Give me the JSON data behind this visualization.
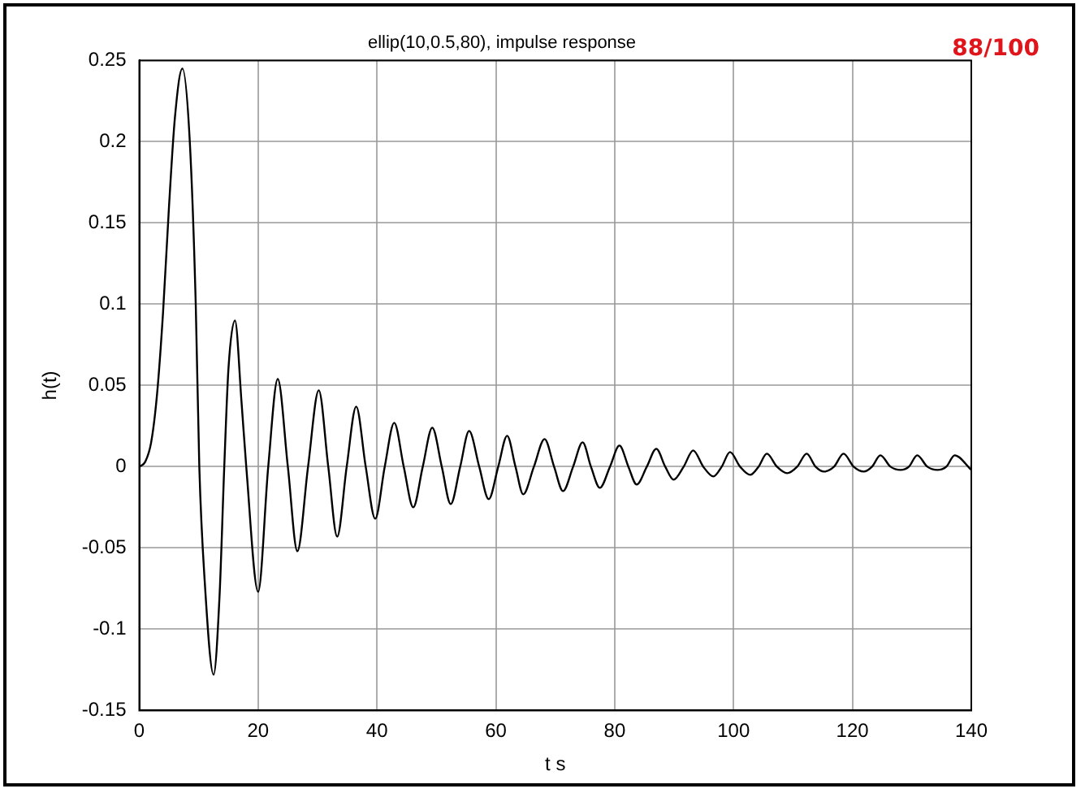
{
  "chart_data": {
    "type": "line",
    "title": "ellip(10,0.5,80), impulse response",
    "xlabel": "t s",
    "ylabel": "h(t)",
    "annotations": [
      "88/100"
    ],
    "xlim": [
      0,
      140
    ],
    "xticks": [
      0,
      20,
      40,
      60,
      80,
      100,
      120,
      140
    ],
    "ylim": [
      -0.15,
      0.25
    ],
    "yticks": [
      -0.15,
      -0.1,
      -0.05,
      0,
      0.05,
      0.1,
      0.15,
      0.2,
      0.25
    ],
    "grid": true,
    "legend": false,
    "marker": "none",
    "line_style": "solid",
    "series": [
      {
        "color": "#000000",
        "x": [
          0,
          1,
          2,
          3,
          4,
          5,
          6,
          7.25,
          8.5,
          9.5,
          10.1,
          11,
          12.5,
          13.5,
          14.3,
          15,
          16.1,
          17.2,
          18,
          20,
          21.7,
          23.3,
          25,
          26.6,
          28.4,
          30.2,
          31.8,
          33.3,
          34.9,
          36.5,
          38.1,
          39.7,
          41.3,
          42.9,
          44.5,
          46.1,
          47.7,
          49.3,
          50.9,
          52.4,
          54,
          55.5,
          57.2,
          58.8,
          60.4,
          61.9,
          63.3,
          64.6,
          66.4,
          68.2,
          69.8,
          71.3,
          73,
          74.6,
          76,
          77.5,
          79.2,
          80.8,
          82.3,
          83.7,
          85.4,
          87,
          88.5,
          89.9,
          91.6,
          93.2,
          94.9,
          96.6,
          98,
          99.4,
          101.1,
          102.8,
          104.2,
          105.6,
          107.3,
          109,
          110.7,
          112.3,
          113.8,
          115.2,
          116.9,
          118.5,
          120.2,
          121.9,
          123.3,
          124.7,
          126.4,
          128.1,
          129.5,
          130.9,
          132.6,
          134.3,
          135.8,
          137.2,
          140
        ],
        "values": [
          0,
          0.003,
          0.015,
          0.045,
          0.095,
          0.16,
          0.215,
          0.245,
          0.2,
          0.1,
          0,
          -0.07,
          -0.128,
          -0.08,
          0,
          0.06,
          0.09,
          0.04,
          0,
          -0.077,
          0,
          0.054,
          0,
          -0.052,
          0,
          0.047,
          0,
          -0.043,
          0,
          0.037,
          0,
          -0.032,
          0,
          0.027,
          0,
          -0.025,
          0,
          0.024,
          0,
          -0.023,
          0,
          0.022,
          0,
          -0.02,
          0,
          0.019,
          0,
          -0.017,
          0,
          0.017,
          0,
          -0.015,
          0,
          0.015,
          0,
          -0.013,
          0,
          0.013,
          0,
          -0.011,
          0,
          0.011,
          0,
          -0.008,
          0,
          0.01,
          0,
          -0.006,
          0,
          0.009,
          0,
          -0.005,
          0,
          0.008,
          0,
          -0.004,
          0,
          0.008,
          0,
          -0.003,
          0,
          0.008,
          0,
          -0.003,
          0,
          0.007,
          0,
          -0.002,
          0,
          0.007,
          0,
          -0.002,
          0,
          0.007,
          -0.002
        ]
      }
    ]
  }
}
